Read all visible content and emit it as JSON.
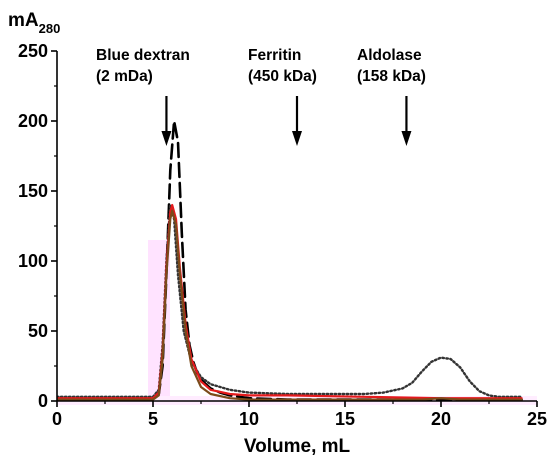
{
  "chart_data": {
    "type": "line",
    "title": "",
    "xlabel": "Volume, mL",
    "ylabel": "mA",
    "ylabel_sub": "280",
    "xlim": [
      0,
      25
    ],
    "ylim": [
      0,
      250
    ],
    "xticks": [
      0,
      5,
      10,
      15,
      20,
      25
    ],
    "yticks": [
      0,
      50,
      100,
      150,
      200,
      250
    ],
    "grid": false,
    "series": [
      {
        "style": "dashed",
        "color": "#000000",
        "x": [
          0,
          5.0,
          5.3,
          5.5,
          5.7,
          5.9,
          6.1,
          6.3,
          6.5,
          6.7,
          6.9,
          7.1,
          7.3,
          7.6,
          8.0,
          8.5,
          9.0,
          10,
          12,
          14,
          16,
          18,
          20,
          22,
          24.2
        ],
        "y": [
          1,
          1,
          5,
          25,
          90,
          165,
          200,
          185,
          120,
          65,
          40,
          28,
          20,
          14,
          9,
          6,
          4,
          2,
          1,
          1,
          1,
          1,
          1,
          1,
          1
        ]
      },
      {
        "style": "dotted",
        "color": "#333333",
        "x": [
          0,
          2,
          4,
          5.0,
          5.3,
          5.5,
          5.7,
          5.9,
          6.1,
          6.3,
          6.6,
          7.0,
          7.5,
          8.0,
          9.0,
          10,
          12,
          14,
          16,
          17,
          18,
          18.5,
          19,
          19.5,
          20,
          20.5,
          21,
          21.5,
          22,
          22.5,
          23,
          24.2
        ],
        "y": [
          3,
          3,
          3,
          3,
          8,
          40,
          100,
          140,
          130,
          90,
          50,
          28,
          17,
          12,
          8,
          6,
          5,
          5,
          5,
          6,
          9,
          13,
          21,
          28,
          31,
          30,
          24,
          14,
          7,
          4,
          3,
          3
        ]
      },
      {
        "style": "solid",
        "color": "#e41a1c",
        "x": [
          0,
          2,
          4,
          5.0,
          5.3,
          5.5,
          5.7,
          5.9,
          6.0,
          6.2,
          6.4,
          6.7,
          7.0,
          7.5,
          8.0,
          9.0,
          10,
          12,
          16,
          20,
          24.2
        ],
        "y": [
          2,
          2,
          2,
          2,
          6,
          35,
          95,
          135,
          140,
          130,
          95,
          55,
          30,
          14,
          8,
          5,
          4,
          4,
          3,
          2,
          2
        ]
      },
      {
        "style": "solid",
        "color": "#7a4a1a",
        "x": [
          0,
          2,
          4,
          5.0,
          5.3,
          5.5,
          5.7,
          5.9,
          6.0,
          6.2,
          6.4,
          6.7,
          7.0,
          7.5,
          8.0,
          9.0,
          10,
          12,
          16,
          19,
          20,
          21,
          24.2
        ],
        "y": [
          1,
          1,
          1,
          1,
          4,
          30,
          90,
          130,
          136,
          126,
          90,
          50,
          25,
          10,
          5,
          2,
          1,
          1,
          1,
          1,
          2,
          1,
          1
        ]
      }
    ],
    "annotations": [
      {
        "lines": [
          "Blue dextran",
          "(2 mDa)"
        ],
        "x": 5.7
      },
      {
        "lines": [
          "Ferritin",
          "(450 kDa)"
        ],
        "x": 12.5
      },
      {
        "lines": [
          "Aldolase",
          "(158 kDa)"
        ],
        "x": 18.2
      }
    ]
  }
}
